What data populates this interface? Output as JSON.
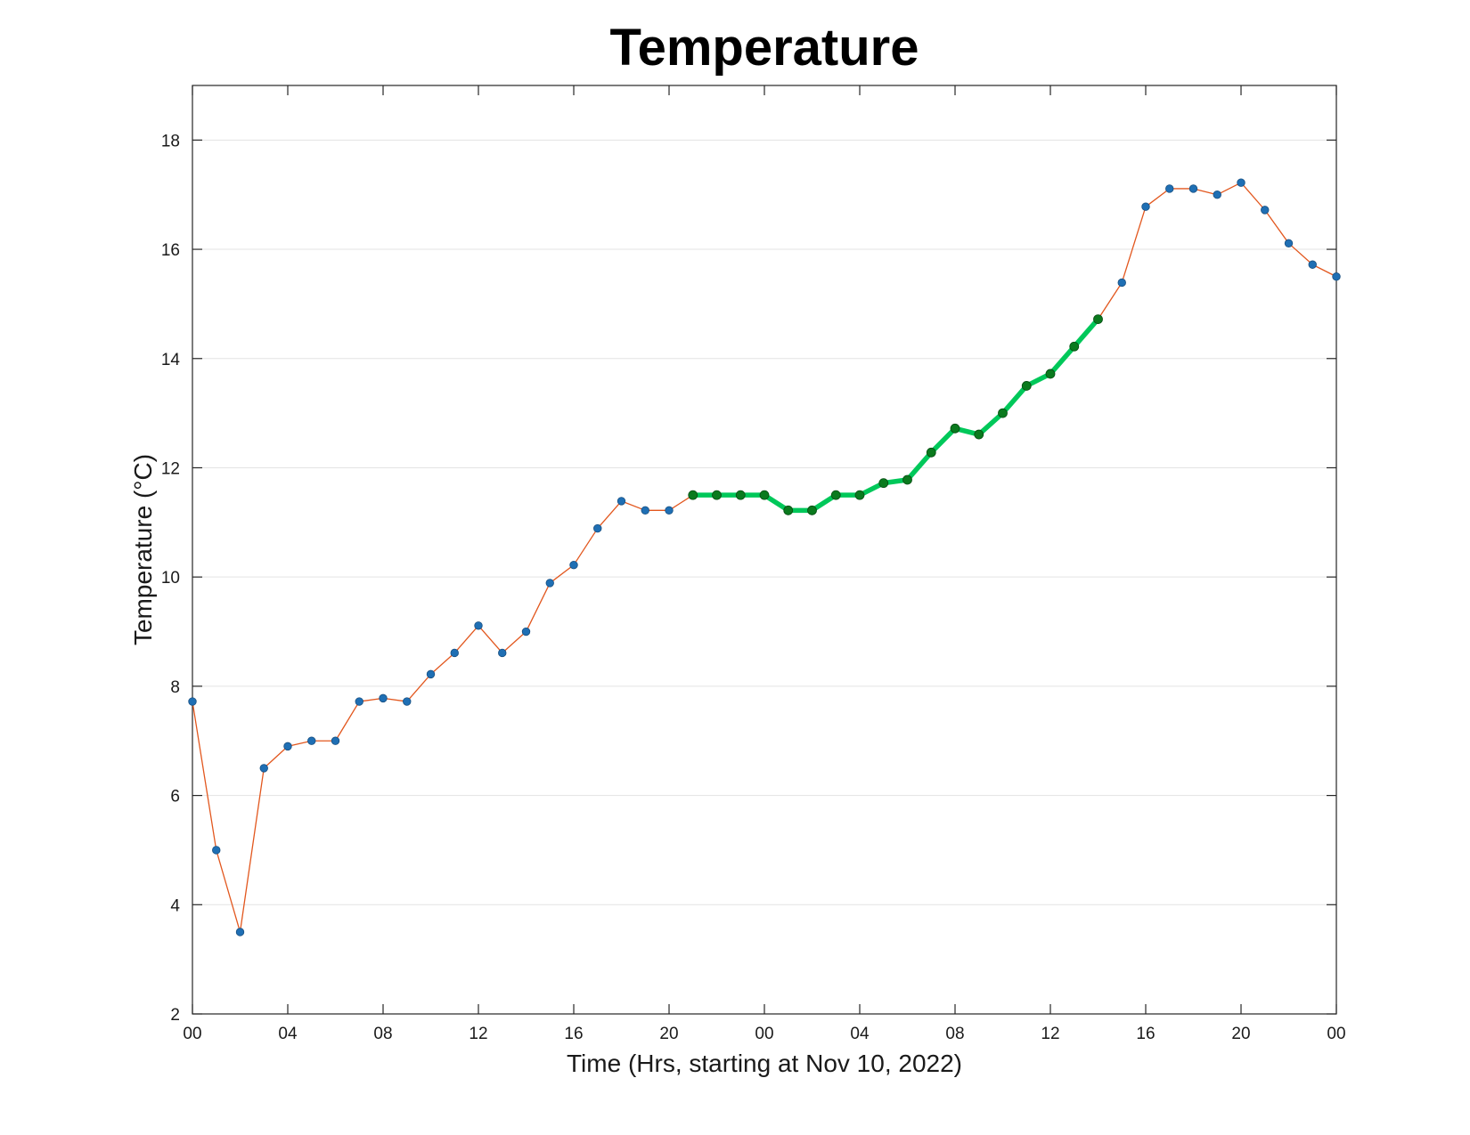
{
  "chart_data": {
    "type": "line",
    "title": "Temperature",
    "xlabel": "Time (Hrs, starting at Nov 10, 2022)",
    "ylabel": "Temperature (°C)",
    "xlim": [
      0,
      48
    ],
    "ylim": [
      2,
      19
    ],
    "x_ticks": [
      0,
      4,
      8,
      12,
      16,
      20,
      24,
      28,
      32,
      36,
      40,
      44,
      48
    ],
    "x_tick_labels": [
      "00",
      "04",
      "08",
      "12",
      "16",
      "20",
      "00",
      "04",
      "08",
      "12",
      "16",
      "20",
      "00"
    ],
    "y_ticks": [
      2,
      4,
      6,
      8,
      10,
      12,
      14,
      16,
      18
    ],
    "y_tick_labels": [
      "2",
      "4",
      "6",
      "8",
      "10",
      "12",
      "14",
      "16",
      "18"
    ],
    "grid": "horizontal",
    "series": [
      {
        "x": [
          0,
          1,
          2,
          3,
          4,
          5,
          6,
          7,
          8,
          9,
          10,
          11,
          12,
          13,
          14,
          15,
          16,
          17,
          18,
          19,
          20,
          21,
          22,
          23,
          24,
          25,
          26,
          27,
          28,
          29,
          30,
          31,
          32,
          33,
          34,
          35,
          36,
          37,
          38,
          39,
          40,
          41,
          42,
          43,
          44,
          45,
          46,
          47,
          48
        ],
        "values": [
          7.72,
          5.0,
          3.5,
          6.5,
          6.9,
          7.0,
          7.0,
          7.72,
          7.78,
          7.72,
          8.22,
          8.61,
          9.11,
          8.61,
          9.0,
          9.89,
          10.22,
          10.89,
          11.39,
          11.22,
          11.22,
          11.5,
          11.5,
          11.5,
          11.5,
          11.22,
          11.22,
          11.5,
          11.5,
          11.72,
          11.78,
          12.28,
          12.72,
          12.61,
          13.0,
          13.5,
          13.72,
          14.22,
          14.72,
          15.39,
          16.78,
          17.11,
          17.11,
          17.0,
          17.22,
          16.72,
          16.11,
          15.72,
          15.5
        ],
        "color": "#e2571e",
        "marker_color": "#1f6fb4"
      },
      {
        "x": [
          21,
          22,
          23,
          24,
          25,
          26,
          27,
          28,
          29,
          30,
          31,
          32,
          33,
          34,
          35,
          36,
          37,
          38
        ],
        "values": [
          11.5,
          11.5,
          11.5,
          11.5,
          11.22,
          11.22,
          11.5,
          11.5,
          11.72,
          11.78,
          12.28,
          12.72,
          12.61,
          13.0,
          13.5,
          13.72,
          14.22,
          14.72
        ],
        "color": "#00c85a",
        "marker_color": "#0a7a1e"
      }
    ]
  }
}
